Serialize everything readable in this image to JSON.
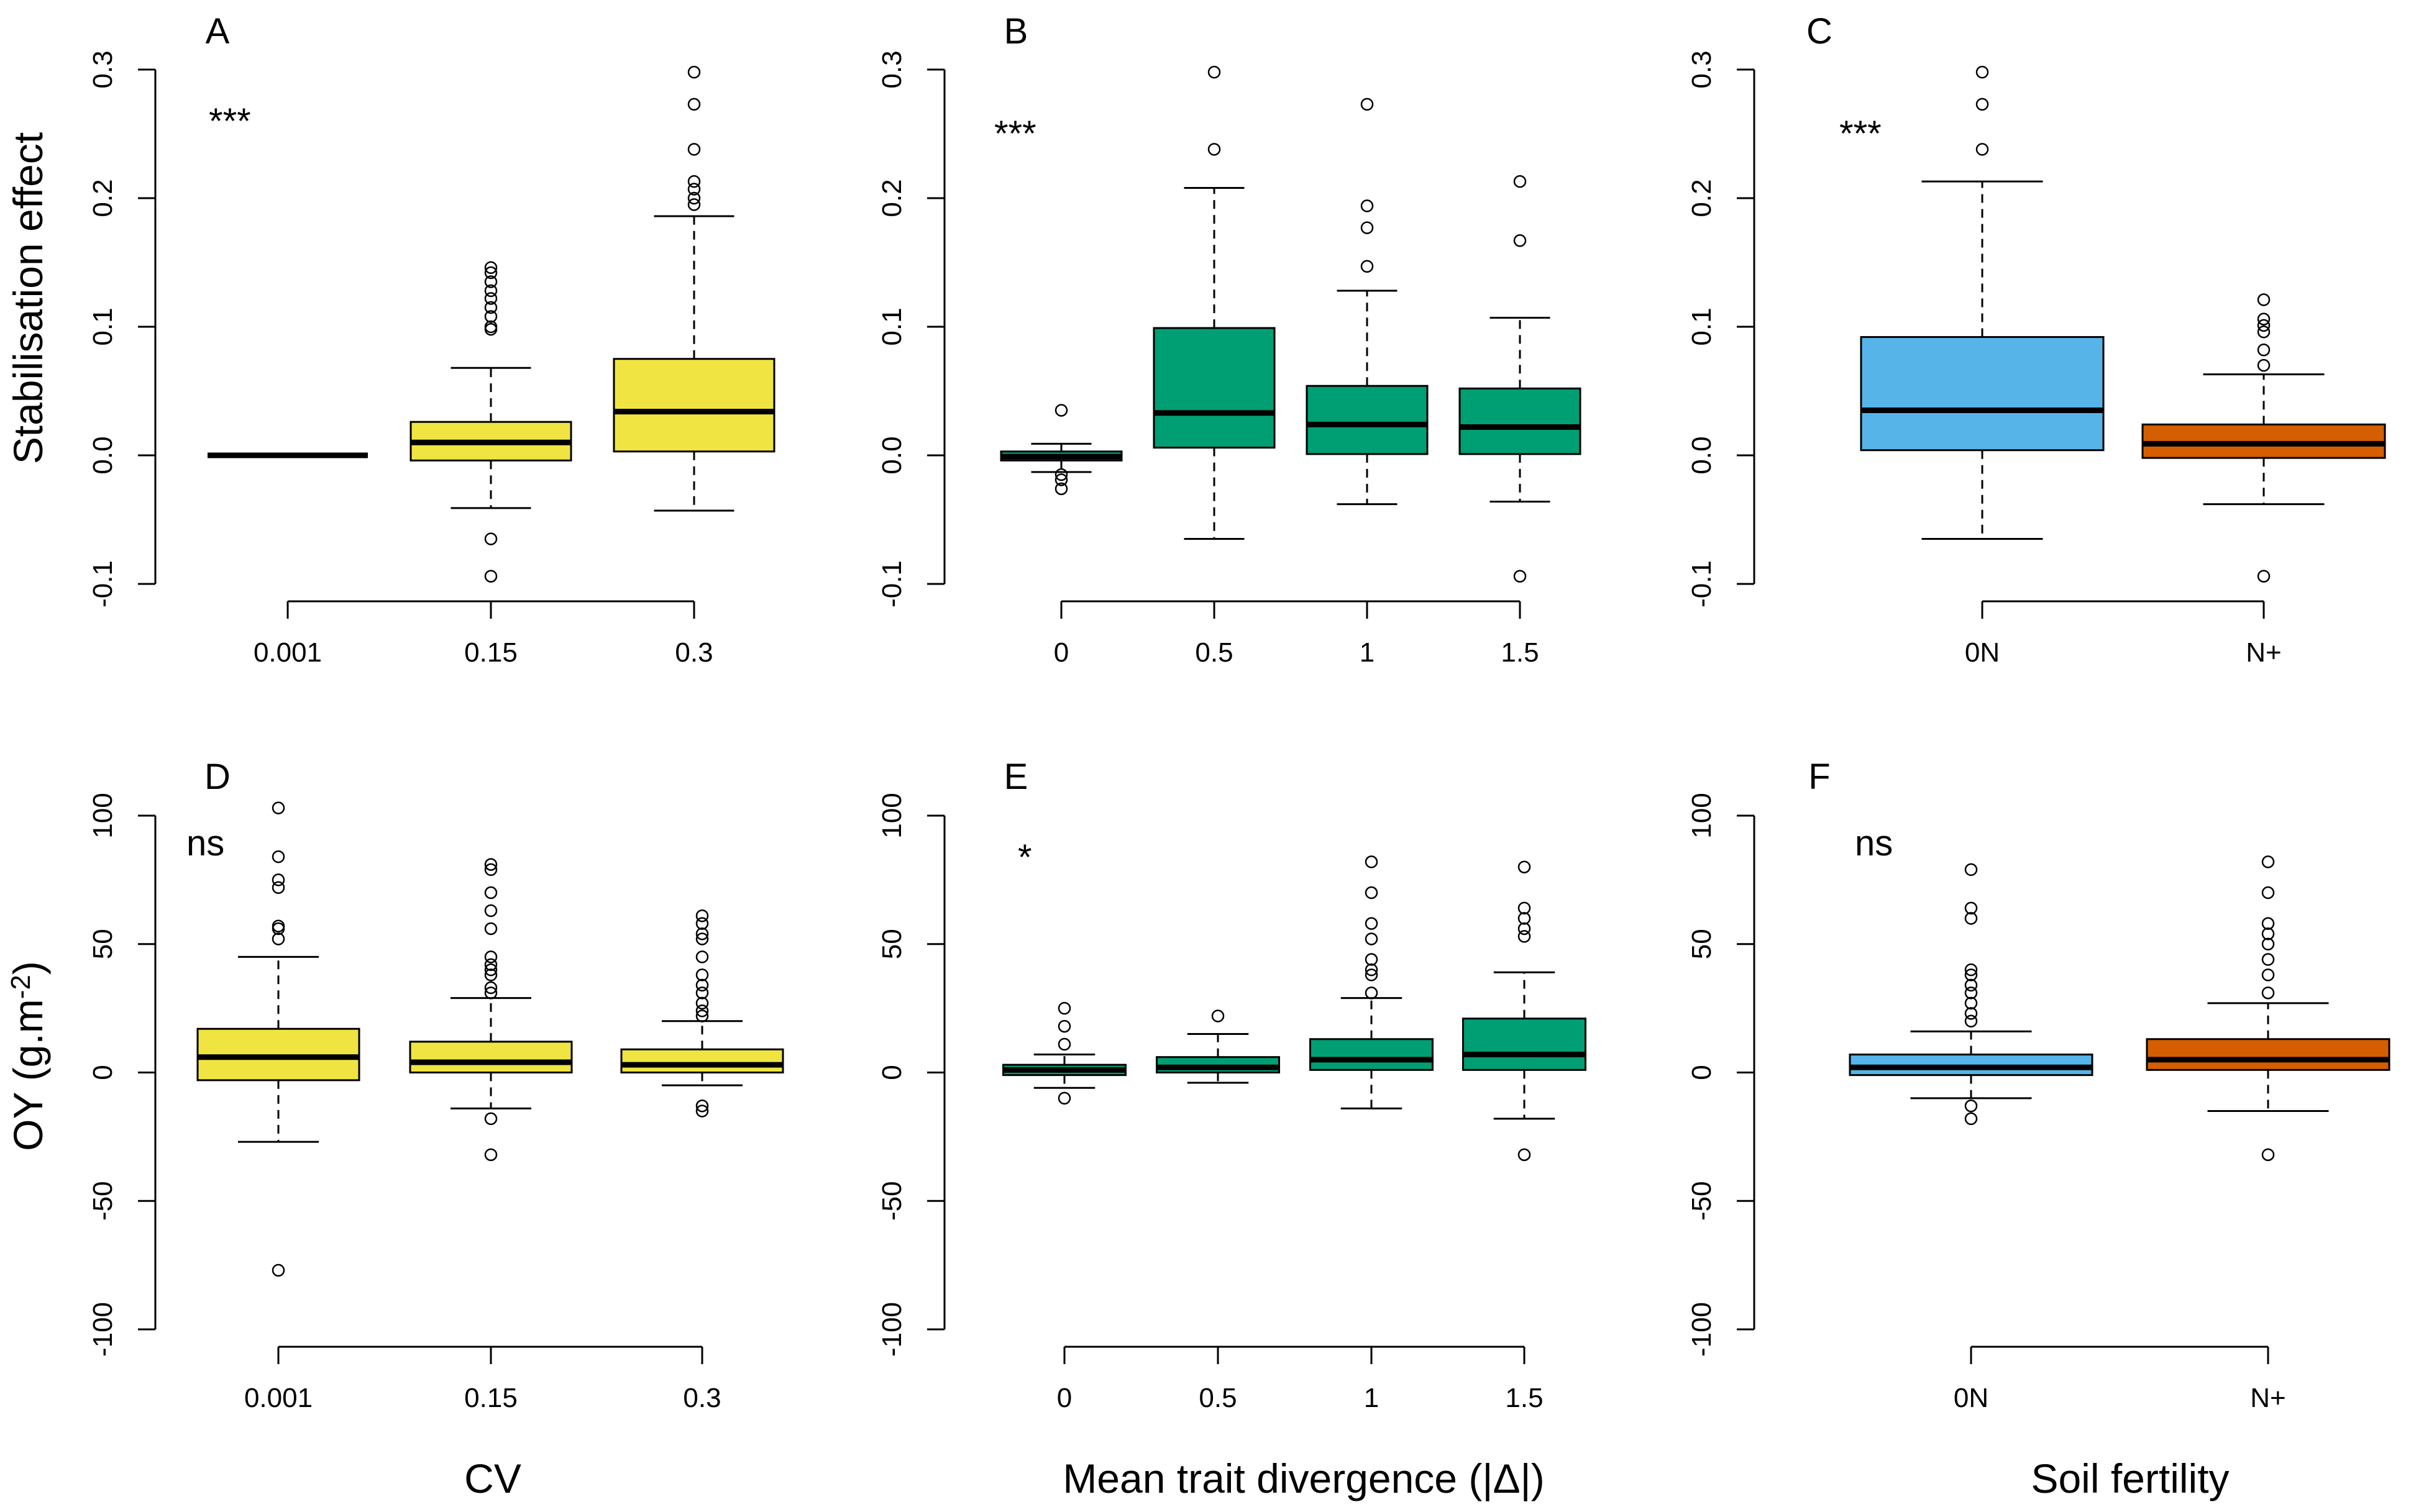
{
  "figure": {
    "y_titles": {
      "top": "Stabilisation effect",
      "bottom_main": "OY (g.m",
      "bottom_sup": "-2",
      "bottom_end": ")"
    },
    "x_titles": [
      "CV",
      "Mean trait divergence (|Δ|)",
      "Soil fertility"
    ]
  },
  "chart_data": [
    {
      "panel": "A",
      "type": "box",
      "significance": "***",
      "ylim": [
        -0.1,
        0.3
      ],
      "yticks": [
        -0.1,
        0.0,
        0.1,
        0.2,
        0.3
      ],
      "ytick_labels": [
        "-0.1",
        "0.0",
        "0.1",
        "0.2",
        "0.3"
      ],
      "categories": [
        "0.001",
        "0.15",
        "0.3"
      ],
      "color": "#f0e442",
      "boxes": [
        {
          "whislo": 0.0,
          "q1": 0.0,
          "med": 0.0,
          "q3": 0.0,
          "whishi": 0.0,
          "outliers": []
        },
        {
          "whislo": -0.041,
          "q1": -0.004,
          "med": 0.01,
          "q3": 0.026,
          "whishi": 0.068,
          "outliers": [
            -0.065,
            -0.094,
            0.098,
            0.1,
            0.108,
            0.115,
            0.122,
            0.128,
            0.135,
            0.142,
            0.146
          ]
        },
        {
          "whislo": -0.043,
          "q1": 0.003,
          "med": 0.034,
          "q3": 0.075,
          "whishi": 0.186,
          "outliers": [
            0.195,
            0.2,
            0.207,
            0.213,
            0.238,
            0.273,
            0.298
          ]
        }
      ]
    },
    {
      "panel": "B",
      "type": "box",
      "significance": "***",
      "ylim": [
        -0.1,
        0.3
      ],
      "yticks": [
        -0.1,
        0.0,
        0.1,
        0.2,
        0.3
      ],
      "ytick_labels": [
        "-0.1",
        "0.0",
        "0.1",
        "0.2",
        "0.3"
      ],
      "categories": [
        "0",
        "0.5",
        "1",
        "1.5"
      ],
      "color": "#009e73",
      "boxes": [
        {
          "whislo": -0.013,
          "q1": -0.004,
          "med": -0.001,
          "q3": 0.003,
          "whishi": 0.009,
          "outliers": [
            0.035,
            -0.015,
            -0.019,
            -0.026
          ]
        },
        {
          "whislo": -0.065,
          "q1": 0.006,
          "med": 0.033,
          "q3": 0.099,
          "whishi": 0.208,
          "outliers": [
            0.238,
            0.298
          ]
        },
        {
          "whislo": -0.038,
          "q1": 0.001,
          "med": 0.024,
          "q3": 0.054,
          "whishi": 0.128,
          "outliers": [
            0.147,
            0.177,
            0.194,
            0.273
          ]
        },
        {
          "whislo": -0.036,
          "q1": 0.001,
          "med": 0.022,
          "q3": 0.052,
          "whishi": 0.107,
          "outliers": [
            0.167,
            0.213,
            -0.094
          ]
        }
      ]
    },
    {
      "panel": "C",
      "type": "box",
      "significance": "***",
      "ylim": [
        -0.1,
        0.3
      ],
      "yticks": [
        -0.1,
        0.0,
        0.1,
        0.2,
        0.3
      ],
      "ytick_labels": [
        "-0.1",
        "0.0",
        "0.1",
        "0.2",
        "0.3"
      ],
      "categories": [
        "0N",
        "N+"
      ],
      "colors": [
        "#56b4e9",
        "#d55e00"
      ],
      "boxes": [
        {
          "whislo": -0.065,
          "q1": 0.004,
          "med": 0.035,
          "q3": 0.092,
          "whishi": 0.213,
          "outliers": [
            0.238,
            0.273,
            0.298
          ]
        },
        {
          "whislo": -0.038,
          "q1": -0.002,
          "med": 0.009,
          "q3": 0.024,
          "whishi": 0.063,
          "outliers": [
            0.07,
            0.082,
            0.096,
            0.101,
            0.106,
            0.121,
            -0.094
          ]
        }
      ]
    },
    {
      "panel": "D",
      "type": "box",
      "significance": "ns",
      "ylim": [
        -100,
        100
      ],
      "yticks": [
        -100,
        -50,
        0,
        50,
        100
      ],
      "ytick_labels": [
        "-100",
        "-50",
        "0",
        "50",
        "100"
      ],
      "categories": [
        "0.001",
        "0.15",
        "0.3"
      ],
      "color": "#f0e442",
      "boxes": [
        {
          "whislo": -27,
          "q1": -3,
          "med": 6,
          "q3": 17,
          "whishi": 45,
          "outliers": [
            52,
            56,
            57,
            72,
            75,
            84,
            103,
            -77
          ]
        },
        {
          "whislo": -14,
          "q1": 0,
          "med": 4,
          "q3": 12,
          "whishi": 29,
          "outliers": [
            31,
            33,
            38,
            40,
            42,
            45,
            56,
            63,
            70,
            79,
            81,
            -18,
            -32
          ]
        },
        {
          "whislo": -5,
          "q1": 0,
          "med": 3,
          "q3": 9,
          "whishi": 20,
          "outliers": [
            22,
            24,
            27,
            31,
            34,
            38,
            45,
            52,
            54,
            58,
            61,
            -13,
            -15
          ]
        }
      ]
    },
    {
      "panel": "E",
      "type": "box",
      "significance": "*",
      "ylim": [
        -100,
        100
      ],
      "yticks": [
        -100,
        -50,
        0,
        50,
        100
      ],
      "ytick_labels": [
        "-100",
        "-50",
        "0",
        "50",
        "100"
      ],
      "categories": [
        "0",
        "0.5",
        "1",
        "1.5"
      ],
      "color": "#009e73",
      "boxes": [
        {
          "whislo": -6,
          "q1": -1,
          "med": 1,
          "q3": 3,
          "whishi": 7,
          "outliers": [
            11,
            18,
            25,
            -10
          ]
        },
        {
          "whislo": -4,
          "q1": 0,
          "med": 2,
          "q3": 6,
          "whishi": 15,
          "outliers": [
            22
          ]
        },
        {
          "whislo": -14,
          "q1": 1,
          "med": 5,
          "q3": 13,
          "whishi": 29,
          "outliers": [
            31,
            38,
            40,
            44,
            52,
            58,
            70,
            82
          ]
        },
        {
          "whislo": -18,
          "q1": 1,
          "med": 7,
          "q3": 21,
          "whishi": 39,
          "outliers": [
            53,
            56,
            60,
            64,
            80,
            -32
          ]
        }
      ]
    },
    {
      "panel": "F",
      "type": "box",
      "significance": "ns",
      "ylim": [
        -100,
        100
      ],
      "yticks": [
        -100,
        -50,
        0,
        50,
        100
      ],
      "ytick_labels": [
        "-100",
        "-50",
        "0",
        "50",
        "100"
      ],
      "categories": [
        "0N",
        "N+"
      ],
      "colors": [
        "#56b4e9",
        "#d55e00"
      ],
      "boxes": [
        {
          "whislo": -10,
          "q1": -1,
          "med": 2,
          "q3": 7,
          "whishi": 16,
          "outliers": [
            20,
            23,
            27,
            31,
            34,
            38,
            40,
            60,
            64,
            79,
            -13,
            -18
          ]
        },
        {
          "whislo": -15,
          "q1": 1,
          "med": 5,
          "q3": 13,
          "whishi": 27,
          "outliers": [
            31,
            38,
            44,
            50,
            54,
            58,
            70,
            82,
            -32
          ]
        }
      ]
    }
  ]
}
